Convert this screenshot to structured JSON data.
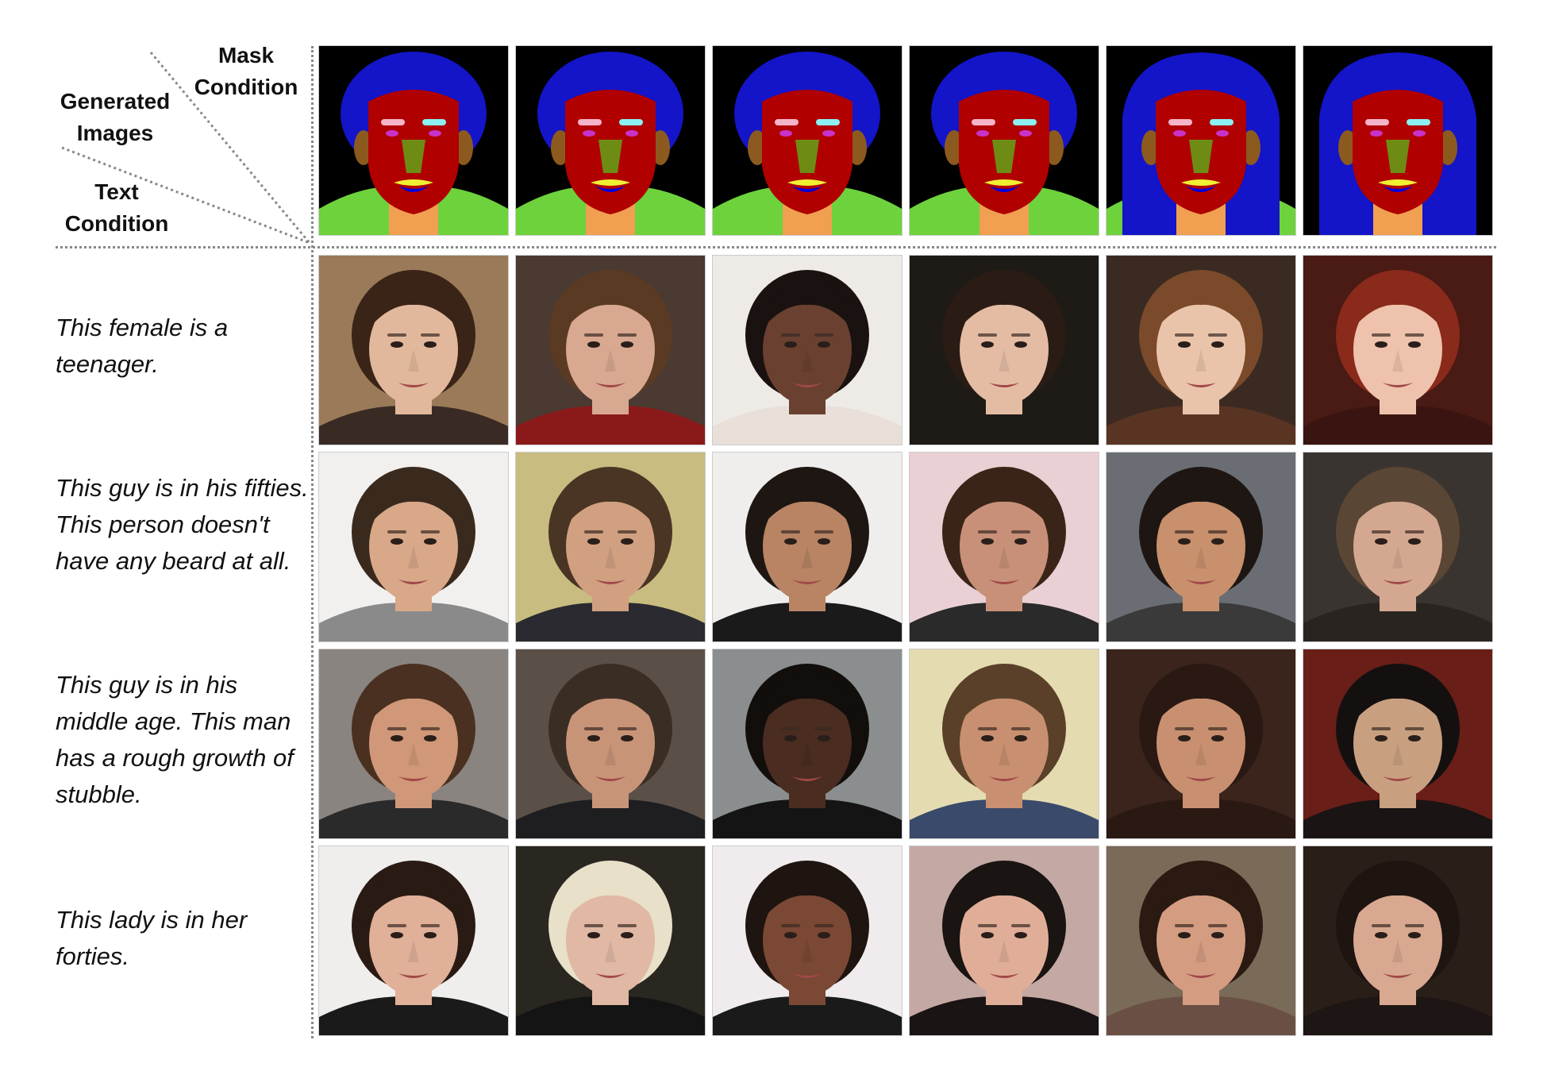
{
  "header": {
    "mask_condition": "Mask\nCondition",
    "generated_images": "Generated\nImages",
    "text_condition": "Text\nCondition"
  },
  "rows": [
    {
      "caption": "This female is a teenager."
    },
    {
      "caption": "This guy is in his fifties. This person doesn't have any beard at all."
    },
    {
      "caption": "This guy is in his middle age. This man has a rough growth of stubble."
    },
    {
      "caption": "This lady is in her forties."
    }
  ],
  "mask_palette": {
    "background": "#000000",
    "hair": "#1414c8",
    "skin": "#b00000",
    "nose": "#6e8c14",
    "cloth": "#6ed23c",
    "neck": "#f0a050",
    "ear": "#8c5a1e",
    "brow_left": "#f5b4c8",
    "brow_right": "#8cf0f0",
    "eyes": "#c832c8",
    "upper_lip": "#f0f032",
    "lower_lip": "#0000dc"
  },
  "photos": [
    [
      {
        "bg": "#9a7a58",
        "skin": "#e2b89c",
        "hair": "#3a2418",
        "shirt": "#3a2a24"
      },
      {
        "bg": "#4a3a32",
        "skin": "#d8a890",
        "hair": "#5a3a22",
        "shirt": "#8a1a1a"
      },
      {
        "bg": "#eeeae6",
        "skin": "#6a4030",
        "hair": "#1a1210",
        "shirt": "#e8e0d8"
      },
      {
        "bg": "#1e1a16",
        "skin": "#e4bca4",
        "hair": "#2a1c14",
        "shirt": "#1e1a16"
      },
      {
        "bg": "#3a2a22",
        "skin": "#eac4aa",
        "hair": "#7a4a2a",
        "shirt": "#5a3422"
      },
      {
        "bg": "#4a1a14",
        "skin": "#eec2ac",
        "hair": "#8a2a1a",
        "shirt": "#3a1410"
      }
    ],
    [
      {
        "bg": "#f2f0ee",
        "skin": "#d8a888",
        "hair": "#3a2a1e",
        "shirt": "#8a8a8a"
      },
      {
        "bg": "#c8bc80",
        "skin": "#d0a080",
        "hair": "#4a3424",
        "shirt": "#2a2a30"
      },
      {
        "bg": "#f0eeec",
        "skin": "#b88464",
        "hair": "#1e1612",
        "shirt": "#1a1a1a"
      },
      {
        "bg": "#ead0d4",
        "skin": "#c89078",
        "hair": "#3a2418",
        "shirt": "#2a2a2a"
      },
      {
        "bg": "#6a6e74",
        "skin": "#c8906c",
        "hair": "#1e1612",
        "shirt": "#3a3a3a"
      },
      {
        "bg": "#3a3430",
        "skin": "#d4a890",
        "hair": "#5a4634",
        "shirt": "#2a2420"
      }
    ],
    [
      {
        "bg": "#8a8480",
        "skin": "#d09878",
        "hair": "#4a3020",
        "shirt": "#2a2a2a"
      },
      {
        "bg": "#5a5048",
        "skin": "#c89478",
        "hair": "#3a2e24",
        "shirt": "#1e1e20"
      },
      {
        "bg": "#8a8e8e",
        "skin": "#4a2c20",
        "hair": "#120e0c",
        "shirt": "#141414"
      },
      {
        "bg": "#e4dcb0",
        "skin": "#c89070",
        "hair": "#5a4028",
        "shirt": "#3a4a6a"
      },
      {
        "bg": "#3a241c",
        "skin": "#c89070",
        "hair": "#2a1812",
        "shirt": "#2a1812"
      },
      {
        "bg": "#6a1e18",
        "skin": "#c8a080",
        "hair": "#141010",
        "shirt": "#1a1414"
      }
    ],
    [
      {
        "bg": "#f0eeec",
        "skin": "#e0b098",
        "hair": "#2a1a14",
        "shirt": "#1a1a1a"
      },
      {
        "bg": "#2a2620",
        "skin": "#e0b8a4",
        "hair": "#e8e0c8",
        "shirt": "#141414"
      },
      {
        "bg": "#f0ecee",
        "skin": "#7a4834",
        "hair": "#1e1410",
        "shirt": "#1a1a1a"
      },
      {
        "bg": "#c4a8a4",
        "skin": "#e0ae98",
        "hair": "#1a1412",
        "shirt": "#1a1414"
      },
      {
        "bg": "#7a6a58",
        "skin": "#d49c80",
        "hair": "#2a1a12",
        "shirt": "#6a5044"
      },
      {
        "bg": "#2a1e18",
        "skin": "#d8a890",
        "hair": "#1e1410",
        "shirt": "#1e1614"
      }
    ]
  ]
}
